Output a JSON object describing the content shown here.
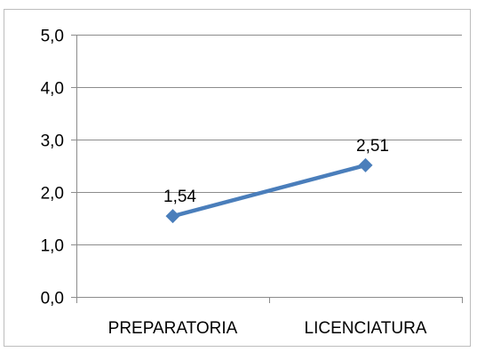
{
  "chart_data": {
    "type": "line",
    "title": "",
    "xlabel": "",
    "ylabel": "",
    "categories": [
      "PREPARATORIA",
      "LICENCIATURA"
    ],
    "series": [
      {
        "values": [
          1.54,
          2.51
        ],
        "labels": [
          "1,54",
          "2,51"
        ]
      }
    ],
    "ylim": [
      0,
      5
    ],
    "yticks": [
      0,
      1,
      2,
      3,
      4,
      5
    ],
    "ytick_labels": [
      "0,0",
      "1,0",
      "2,0",
      "3,0",
      "4,0",
      "5,0"
    ],
    "grid": true,
    "legend": "none",
    "colors": {
      "series": "#4a7ebb",
      "grid": "#8c8c8c",
      "text": "#000000",
      "frame": "#bdbdbd"
    }
  }
}
